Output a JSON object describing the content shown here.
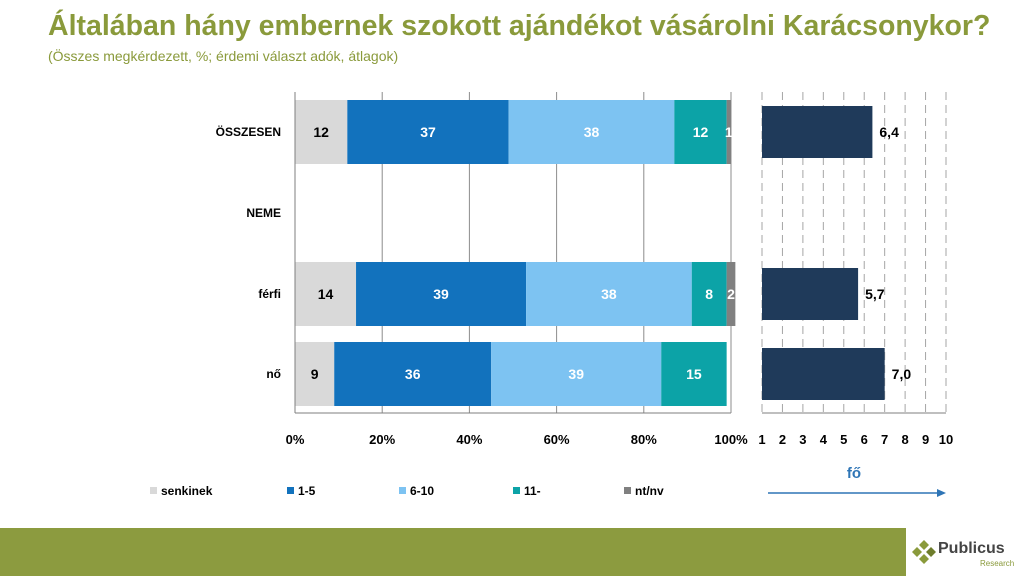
{
  "title": "Általában hány embernek szokott ajándékot vásárolni Karácsonykor?",
  "subtitle": "(Összes megkérdezett, %; érdemi választ adók, átlagok)",
  "colors": {
    "title": "#8a9a3b",
    "senkinek": "#d9d9d9",
    "s1_5": "#1272bd",
    "s6_10": "#7dc3f2",
    "s11": "#0ca3a7",
    "ntnv": "#808080",
    "avg_bar": "#1f3a5a",
    "arrow": "#2e75b6",
    "footer": "#8c9b3f"
  },
  "chart_data": [
    {
      "type": "bar",
      "orientation": "horizontal",
      "stacked": true,
      "categories": [
        "ÖSSZESEN",
        "NEME",
        "férfi",
        "nő"
      ],
      "series": [
        {
          "name": "senkinek",
          "values": [
            12,
            null,
            14,
            9
          ]
        },
        {
          "name": "1-5",
          "values": [
            37,
            null,
            39,
            36
          ]
        },
        {
          "name": "6-10",
          "values": [
            38,
            null,
            38,
            39
          ]
        },
        {
          "name": "11-",
          "values": [
            12,
            null,
            8,
            15
          ]
        },
        {
          "name": "nt/nv",
          "values": [
            1,
            null,
            2,
            0
          ]
        }
      ],
      "value_labels": [
        [
          "12",
          "37",
          "38",
          "12",
          "1"
        ],
        [
          "",
          "",
          "",
          "",
          ""
        ],
        [
          "14",
          "39",
          "38",
          "8",
          "2"
        ],
        [
          "9",
          "36",
          "39",
          "15",
          ""
        ]
      ],
      "xlim": [
        0,
        100
      ],
      "xticks": [
        "0%",
        "20%",
        "40%",
        "60%",
        "80%",
        "100%"
      ],
      "grid": true,
      "legend_position": "bottom"
    },
    {
      "type": "bar",
      "orientation": "horizontal",
      "categories": [
        "ÖSSZESEN",
        "NEME",
        "férfi",
        "nő"
      ],
      "values": [
        6.4,
        null,
        5.7,
        7.0
      ],
      "value_labels": [
        "6,4",
        "",
        "5,7",
        "7,0"
      ],
      "xlim": [
        1,
        10
      ],
      "xticks": [
        "1",
        "2",
        "3",
        "4",
        "5",
        "6",
        "7",
        "8",
        "9",
        "10"
      ],
      "xlabel": "fő",
      "grid": "dashed"
    }
  ],
  "footer": {
    "brand": "Publicus",
    "brand_sub": "Research"
  }
}
